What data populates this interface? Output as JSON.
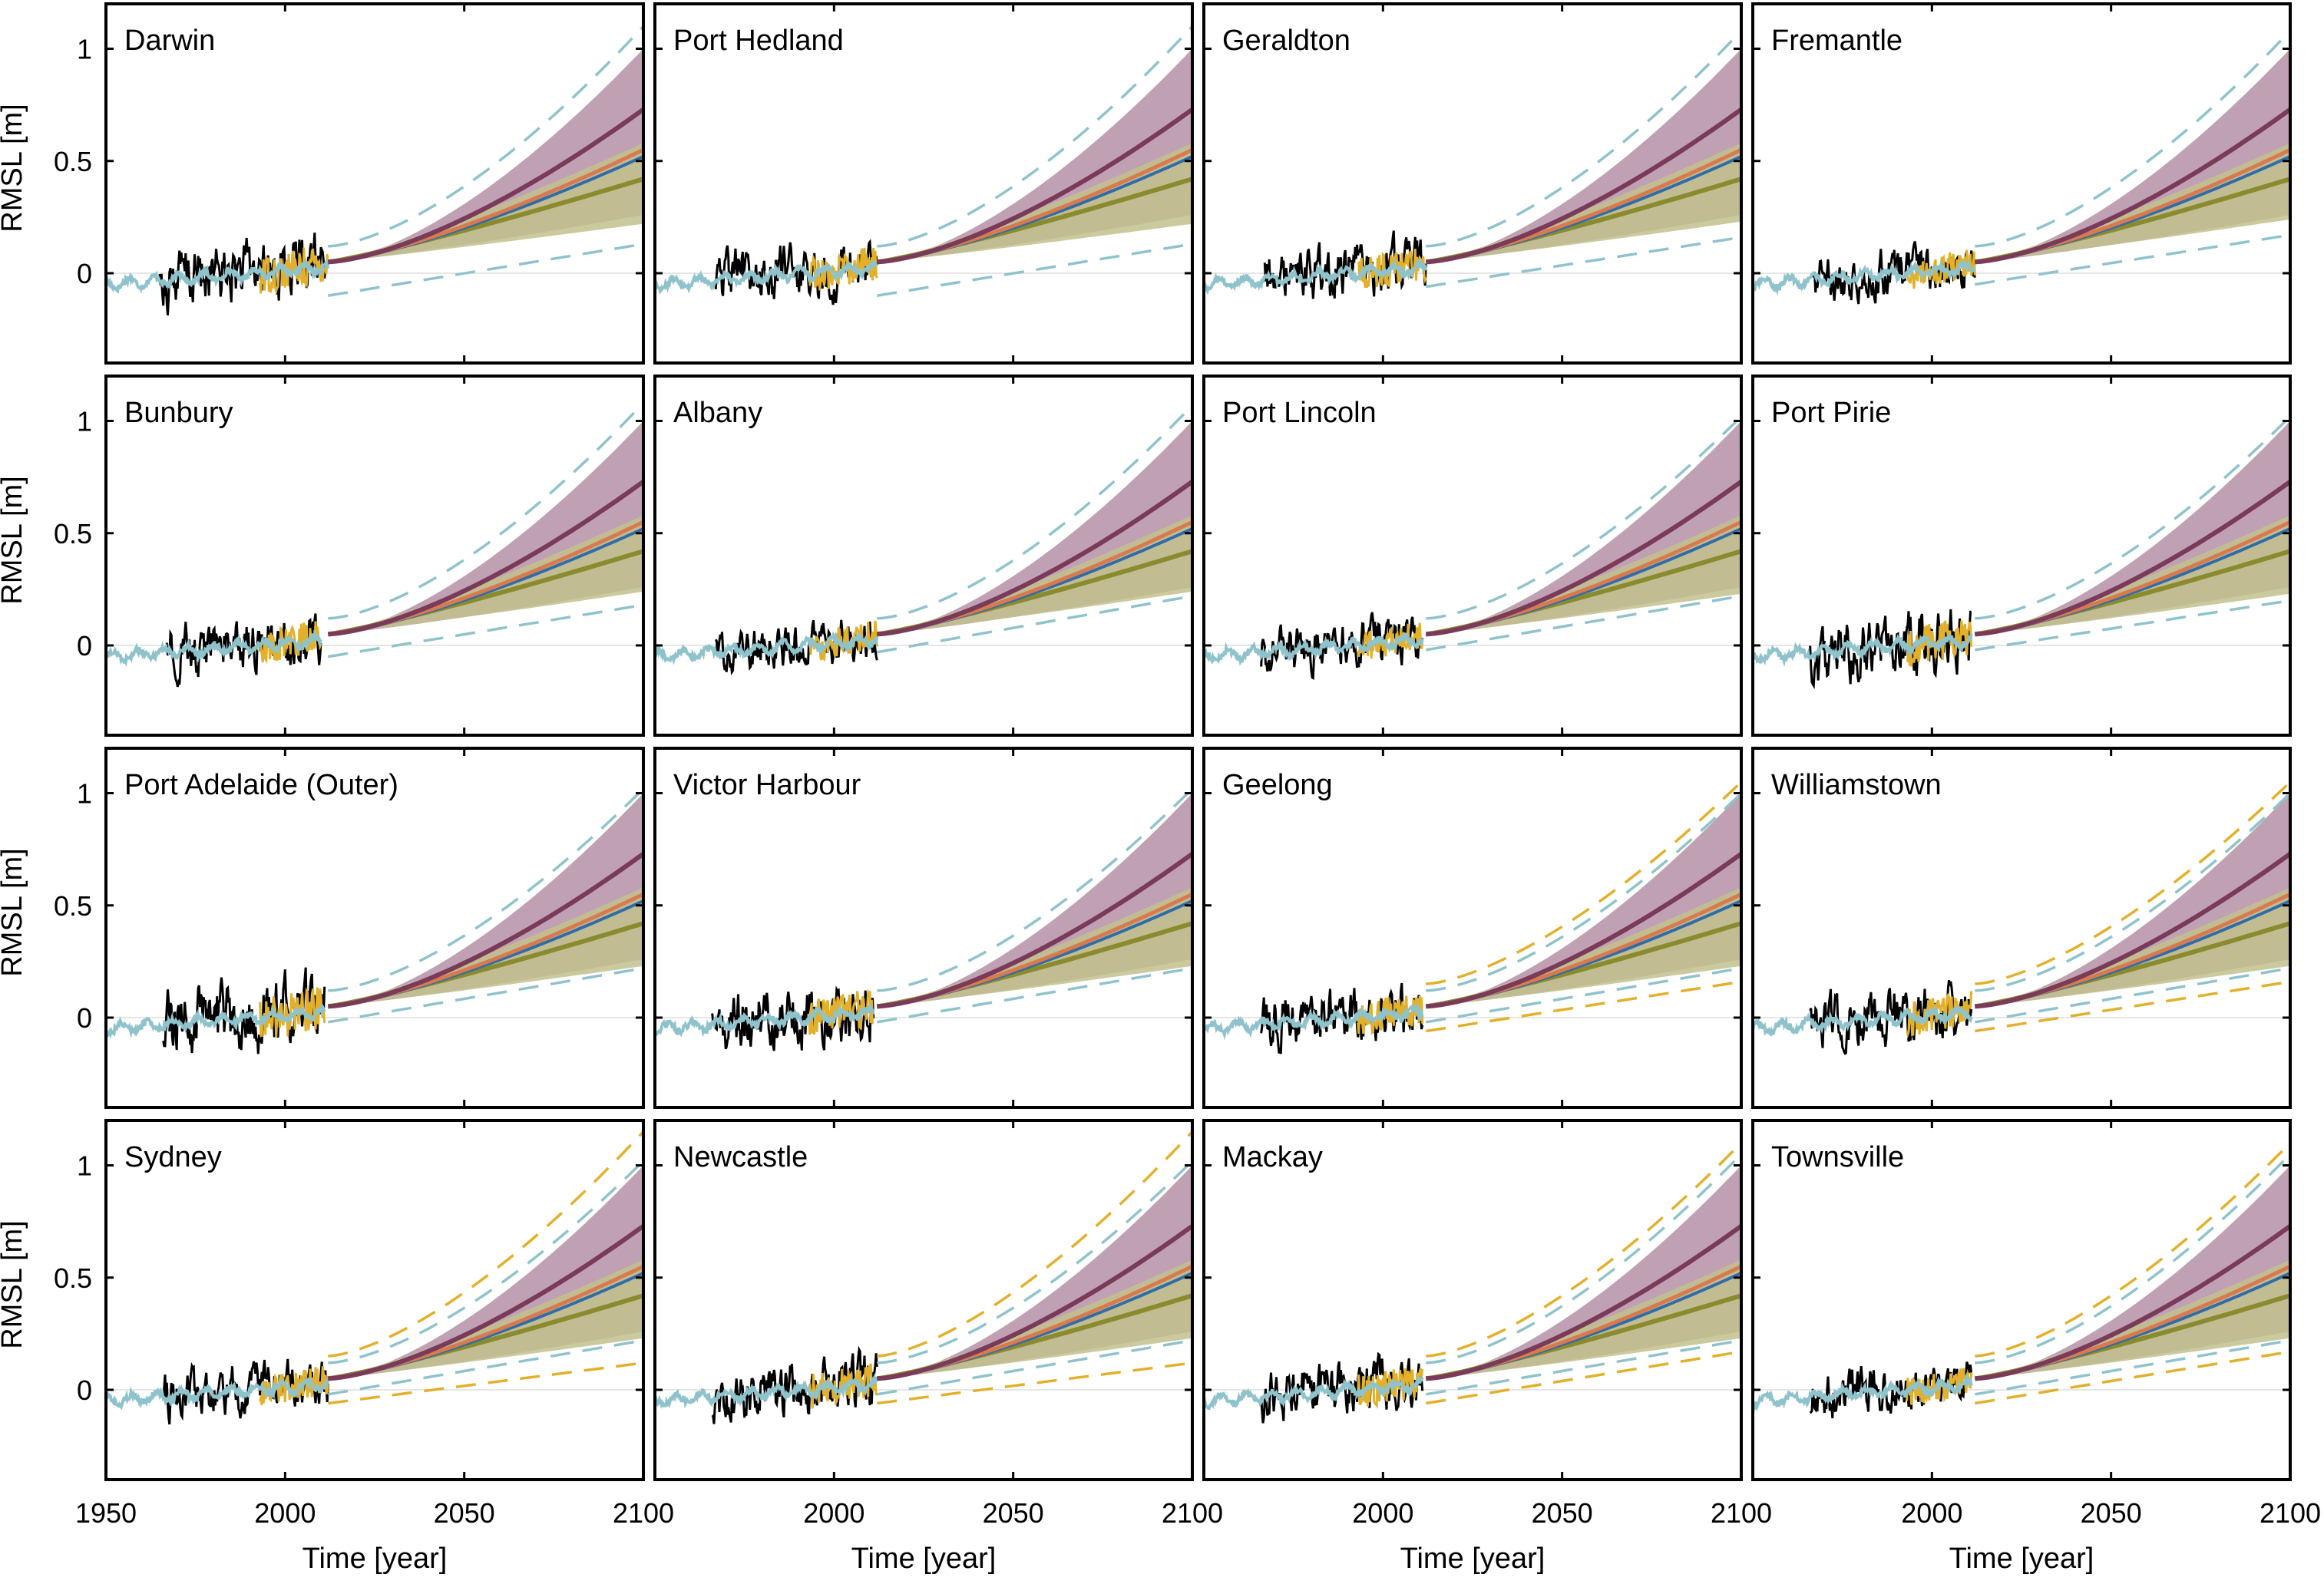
{
  "chart_data": {
    "type": "line",
    "layout": "4x4 small multiples",
    "ylabel": "RMSL [m]",
    "xlabel": "Time [year]",
    "xlim": [
      1950,
      2100
    ],
    "ylim": [
      -0.4,
      1.2
    ],
    "x_ticks": [
      1950,
      2000,
      2050,
      2100
    ],
    "x_tick_labels_first_panel": [
      "1950",
      "2000",
      "2050",
      "2100"
    ],
    "x_tick_labels_other_panels": [
      "2000",
      "2050",
      "2100"
    ],
    "y_ticks": [
      0,
      0.5,
      1
    ],
    "y_tick_labels": [
      "0",
      "0.5",
      "1"
    ],
    "grid": false,
    "zero_line": true,
    "series_colors": {
      "observed_tide_gauge": "#000000",
      "reconstruction": "#8fc3cc",
      "altimetry_gps": "#e2b02a",
      "projection_high": "#7a3a5a",
      "projection_mid": "#d97a4e",
      "projection_blue": "#2f6da8",
      "projection_low": "#8a8a2e",
      "band_high": "#b591a6",
      "band_low": "#c2c18d"
    },
    "panels": [
      {
        "station": "Darwin",
        "obs_start": 1965,
        "obs_end": 2012,
        "recon_start": 1950,
        "gold_start": 1993,
        "dash_color": "#8fc3cc",
        "dash_upper_2100": 1.1,
        "dash_lower_2100": 0.13,
        "dash_lower_start": -0.1,
        "band_low_lower_2100": 0.22,
        "noise": 0.08
      },
      {
        "station": "Port Hedland",
        "obs_start": 1967,
        "obs_end": 2012,
        "recon_start": 1950,
        "gold_start": 1993,
        "dash_color": "#8fc3cc",
        "dash_upper_2100": 1.1,
        "dash_lower_2100": 0.13,
        "dash_lower_start": -0.1,
        "band_low_lower_2100": 0.22,
        "noise": 0.07
      },
      {
        "station": "Geraldton",
        "obs_start": 1967,
        "obs_end": 2012,
        "recon_start": 1950,
        "gold_start": 1993,
        "dash_color": "#8fc3cc",
        "dash_upper_2100": 1.08,
        "dash_lower_2100": 0.16,
        "dash_lower_start": -0.06,
        "band_low_lower_2100": 0.23,
        "noise": 0.07
      },
      {
        "station": "Fremantle",
        "obs_start": 1967,
        "obs_end": 2012,
        "recon_start": 1950,
        "gold_start": 1993,
        "dash_color": "#8fc3cc",
        "dash_upper_2100": 1.08,
        "dash_lower_2100": 0.17,
        "dash_lower_start": -0.05,
        "band_low_lower_2100": 0.24,
        "noise": 0.06
      },
      {
        "station": "Bunbury",
        "obs_start": 1967,
        "obs_end": 2010,
        "recon_start": 1950,
        "gold_start": 1993,
        "dash_color": "#8fc3cc",
        "dash_upper_2100": 1.08,
        "dash_lower_2100": 0.18,
        "dash_lower_start": -0.05,
        "band_low_lower_2100": 0.24,
        "noise": 0.07
      },
      {
        "station": "Albany",
        "obs_start": 1967,
        "obs_end": 2012,
        "recon_start": 1950,
        "gold_start": 1993,
        "dash_color": "#8fc3cc",
        "dash_upper_2100": 1.07,
        "dash_lower_2100": 0.22,
        "dash_lower_start": -0.03,
        "band_low_lower_2100": 0.24,
        "noise": 0.06
      },
      {
        "station": "Port Lincoln",
        "obs_start": 1966,
        "obs_end": 2011,
        "recon_start": 1950,
        "gold_start": 1993,
        "dash_color": "#8fc3cc",
        "dash_upper_2100": 1.02,
        "dash_lower_2100": 0.22,
        "dash_lower_start": -0.02,
        "band_low_lower_2100": 0.23,
        "noise": 0.06
      },
      {
        "station": "Port Pirie",
        "obs_start": 1966,
        "obs_end": 2011,
        "recon_start": 1950,
        "gold_start": 1993,
        "dash_color": "#8fc3cc",
        "dash_upper_2100": 1.02,
        "dash_lower_2100": 0.2,
        "dash_lower_start": -0.02,
        "band_low_lower_2100": 0.23,
        "noise": 0.08
      },
      {
        "station": "Port Adelaide (Outer)",
        "obs_start": 1966,
        "obs_end": 2011,
        "recon_start": 1950,
        "gold_start": 1993,
        "dash_color": "#8fc3cc",
        "dash_upper_2100": 1.02,
        "dash_lower_2100": 0.22,
        "dash_lower_start": -0.02,
        "band_low_lower_2100": 0.23,
        "noise": 0.09
      },
      {
        "station": "Victor Harbour",
        "obs_start": 1966,
        "obs_end": 2011,
        "recon_start": 1950,
        "gold_start": 1993,
        "dash_color": "#8fc3cc",
        "dash_upper_2100": 1.02,
        "dash_lower_2100": 0.22,
        "dash_lower_start": -0.02,
        "band_low_lower_2100": 0.23,
        "noise": 0.08
      },
      {
        "station": "Geelong",
        "obs_start": 1966,
        "obs_end": 2011,
        "recon_start": 1950,
        "gold_start": 1993,
        "dash_color": "#8fc3cc",
        "dash_upper_2100": 1.0,
        "dash_lower_2100": 0.22,
        "dash_lower_start": -0.02,
        "gold_dash_upper_2100": 1.05,
        "gold_dash_lower_2100": 0.16,
        "band_low_lower_2100": 0.23,
        "noise": 0.07
      },
      {
        "station": "Williamstown",
        "obs_start": 1966,
        "obs_end": 2011,
        "recon_start": 1950,
        "gold_start": 1993,
        "dash_color": "#8fc3cc",
        "dash_upper_2100": 1.0,
        "dash_lower_2100": 0.22,
        "dash_lower_start": -0.02,
        "gold_dash_upper_2100": 1.05,
        "gold_dash_lower_2100": 0.16,
        "band_low_lower_2100": 0.23,
        "noise": 0.07
      },
      {
        "station": "Sydney",
        "obs_start": 1966,
        "obs_end": 2012,
        "recon_start": 1950,
        "gold_start": 1993,
        "dash_color": "#8fc3cc",
        "dash_upper_2100": 1.02,
        "dash_lower_2100": 0.22,
        "dash_lower_start": -0.02,
        "gold_dash_upper_2100": 1.15,
        "gold_dash_lower_2100": 0.12,
        "band_low_lower_2100": 0.23,
        "noise": 0.06
      },
      {
        "station": "Newcastle",
        "obs_start": 1966,
        "obs_end": 2012,
        "recon_start": 1950,
        "gold_start": 1993,
        "dash_color": "#8fc3cc",
        "dash_upper_2100": 1.02,
        "dash_lower_2100": 0.22,
        "dash_lower_start": -0.02,
        "gold_dash_upper_2100": 1.15,
        "gold_dash_lower_2100": 0.12,
        "band_low_lower_2100": 0.23,
        "noise": 0.07
      },
      {
        "station": "Mackay",
        "obs_start": 1966,
        "obs_end": 2011,
        "recon_start": 1950,
        "gold_start": 1993,
        "dash_color": "#8fc3cc",
        "dash_upper_2100": 1.05,
        "dash_lower_2100": 0.22,
        "dash_lower_start": -0.02,
        "gold_dash_upper_2100": 1.1,
        "gold_dash_lower_2100": 0.17,
        "band_low_lower_2100": 0.23,
        "noise": 0.07
      },
      {
        "station": "Townsville",
        "obs_start": 1966,
        "obs_end": 2011,
        "recon_start": 1950,
        "gold_start": 1993,
        "dash_color": "#8fc3cc",
        "dash_upper_2100": 1.05,
        "dash_lower_2100": 0.22,
        "dash_lower_start": -0.02,
        "gold_dash_upper_2100": 1.1,
        "gold_dash_lower_2100": 0.17,
        "band_low_lower_2100": 0.23,
        "noise": 0.06
      }
    ],
    "projections_2100": {
      "high_median": 0.73,
      "high_band_upper": 1.0,
      "mid_median": 0.55,
      "blue_median": 0.52,
      "low_median": 0.42,
      "low_band_upper": 0.58
    },
    "projection_start_year": 2012,
    "projection_start_value": 0.05
  }
}
